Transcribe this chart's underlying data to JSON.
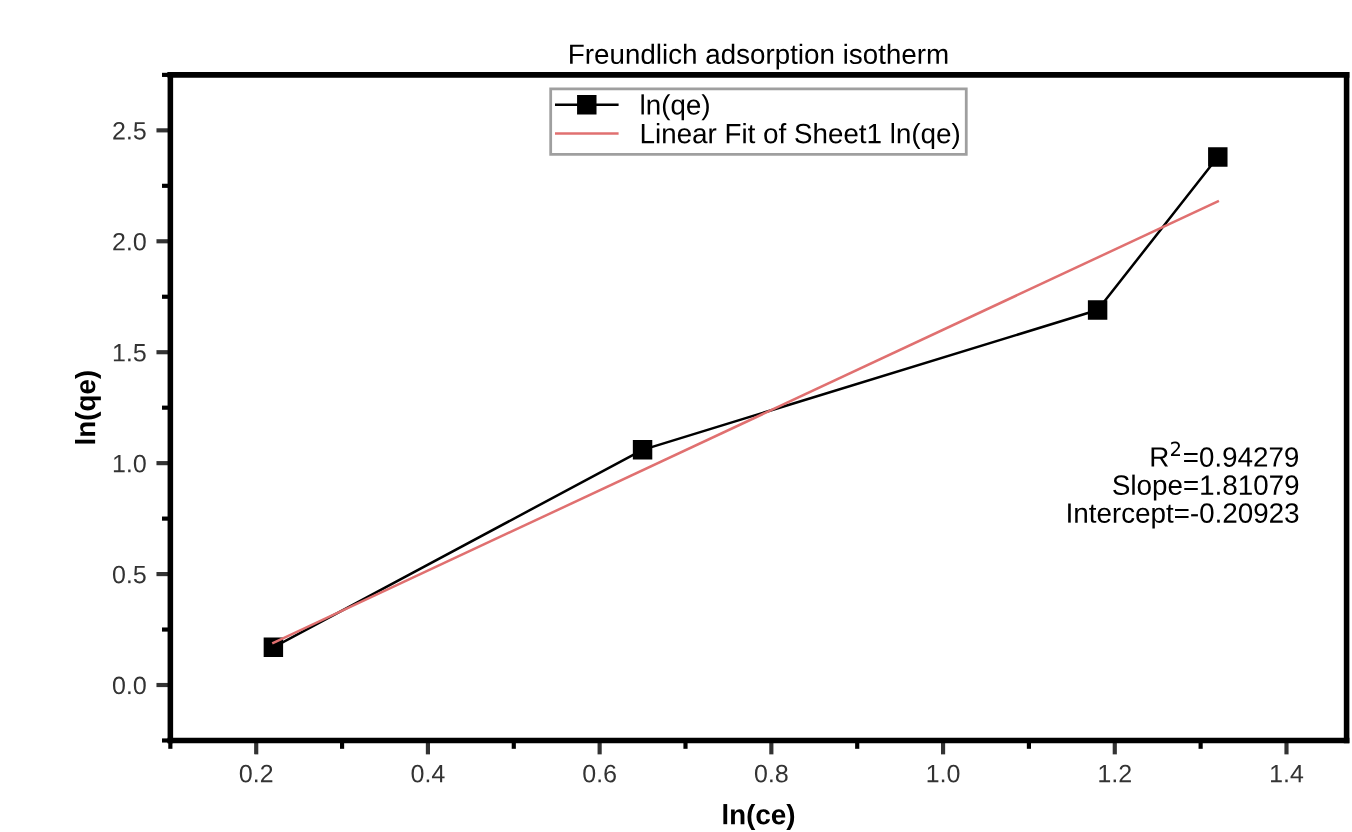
{
  "chart_data": {
    "type": "line",
    "title": "Freundlich adsorption isotherm",
    "xlabel": "ln(ce)",
    "ylabel": "ln(qe)",
    "series": [
      {
        "name": "ln(qe)",
        "color": "#000000",
        "marker": "square",
        "x": [
          0.22,
          0.65,
          1.18,
          1.32
        ],
        "values": [
          0.17,
          1.06,
          1.69,
          2.38
        ]
      },
      {
        "name": "Linear Fit of Sheet1 ln(qe)",
        "color": "#e07070",
        "marker": "none",
        "x": [
          0.22,
          1.32
        ],
        "values": [
          0.19,
          2.18
        ]
      }
    ],
    "annotations": [
      "R$^{2}$=0.94279\nSlope=1.81079\nIntercept=-0.20923"
    ],
    "xlim": [
      0.1,
      1.47
    ],
    "ylim": [
      -0.25,
      2.75
    ],
    "xticks": [
      0.2,
      0.4,
      0.6,
      0.8,
      {
        "value": 1.0,
        "label": "1.0"
      },
      1.2,
      1.4
    ],
    "yticks": [
      {
        "value": 0.0,
        "label": "0.0"
      },
      0.5,
      {
        "value": 1.0,
        "label": "1.0"
      },
      1.5,
      {
        "value": 2.0,
        "label": "2.0"
      },
      2.5
    ],
    "grid": false,
    "legend": "top"
  }
}
